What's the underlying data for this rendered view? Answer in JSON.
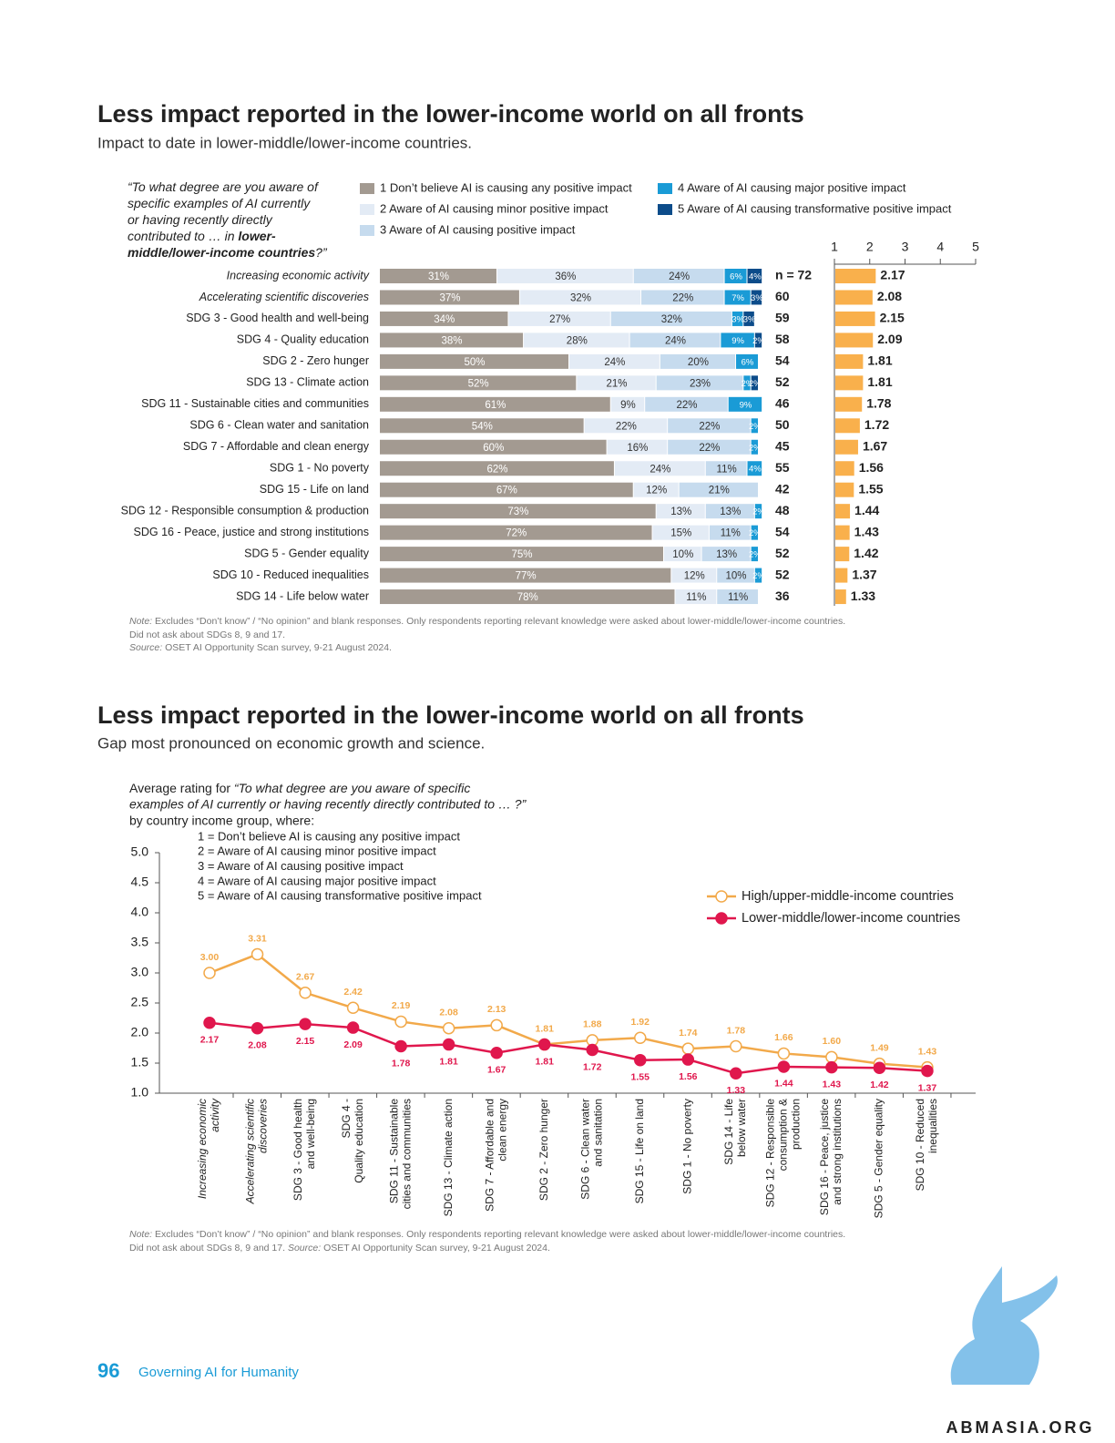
{
  "page": {
    "number": "96",
    "running_title": "Governing AI for Humanity",
    "watermark": "ABMASIA.ORG"
  },
  "chart_data": [
    {
      "type": "bar",
      "orientation": "horizontal",
      "stacked": true,
      "title": "Less impact reported in the lower-income world on all fronts",
      "subtitle": "Impact to date in lower-middle/lower-income countries.",
      "question": [
        [
          "“To what degree are you aware of"
        ],
        [
          "specific examples of AI currently"
        ],
        [
          "or having recently directly"
        ],
        [
          "contributed to … in ",
          "lower-"
        ],
        [
          "middle/lower-income countries",
          "?”"
        ]
      ],
      "categories": [
        "Increasing economic activity",
        "Accelerating scientific discoveries",
        "SDG 3 - Good health and well-being",
        "SDG 4 - Quality education",
        "SDG 2 - Zero hunger",
        "SDG 13 - Climate action",
        "SDG 11 - Sustainable cities and communities",
        "SDG 6 - Clean water and sanitation",
        "SDG 7 - Affordable and clean energy",
        "SDG 1 - No poverty",
        "SDG 15 - Life on land",
        "SDG 12 - Responsible consumption & production",
        "SDG 16 - Peace, justice and strong institutions",
        "SDG 5 - Gender equality",
        "SDG 10 - Reduced inequalities",
        "SDG 14 - Life below water"
      ],
      "series": [
        {
          "name": "1 Don’t believe AI is causing any positive impact",
          "color": "#a39a91",
          "values": [
            31,
            37,
            34,
            38,
            50,
            52,
            61,
            54,
            60,
            62,
            67,
            73,
            72,
            75,
            77,
            78
          ],
          "value_labels": [
            "31%",
            "37%",
            "34%",
            "38%",
            "50%",
            "52%",
            "61%",
            "54%",
            "60%",
            "62%",
            "67%",
            "73%",
            "72%",
            "75%",
            "77%",
            "78%"
          ]
        },
        {
          "name": "2 Aware of AI causing minor positive impact",
          "color": "#e3ebf5",
          "values": [
            36,
            32,
            27,
            28,
            24,
            21,
            9,
            22,
            16,
            24,
            12,
            13,
            15,
            10,
            12,
            11
          ],
          "value_labels": [
            "36%",
            "32%",
            "27%",
            "28%",
            "24%",
            "21%",
            "9%",
            "22%",
            "16%",
            "24%",
            "12%",
            "13%",
            "15%",
            "10%",
            "12%",
            "11%"
          ]
        },
        {
          "name": "3 Aware of AI causing positive impact",
          "color": "#c6dbee",
          "values": [
            24,
            22,
            32,
            24,
            20,
            23,
            22,
            22,
            22,
            11,
            21,
            13,
            11,
            13,
            10,
            11
          ],
          "value_labels": [
            "24%",
            "22%",
            "32%",
            "24%",
            "20%",
            "23%",
            "22%",
            "22%",
            "22%",
            "11%",
            "21%",
            "13%",
            "11%",
            "13%",
            "10%",
            "11%"
          ]
        },
        {
          "name": "4 Aware of AI causing major positive impact",
          "color": "#1a9bd6",
          "values": [
            6,
            7,
            3,
            9,
            6,
            2,
            9,
            2,
            2,
            4,
            null,
            2,
            2,
            2,
            2,
            null
          ],
          "value_labels": [
            "6%",
            "7%",
            "3%",
            "9%",
            "6%",
            "2%",
            "9%",
            "2%",
            "2%",
            "4%",
            null,
            "2%",
            "2%",
            "2%",
            "2%",
            null
          ]
        },
        {
          "name": "5 Aware of AI causing transformative positive impact",
          "color": "#0c4c8a",
          "values": [
            4,
            3,
            3,
            2,
            null,
            2,
            null,
            null,
            null,
            null,
            null,
            null,
            null,
            null,
            null,
            null
          ],
          "value_labels": [
            "4%",
            "3%",
            "3%",
            "2%",
            null,
            "2%",
            null,
            null,
            null,
            null,
            null,
            null,
            null,
            null,
            null,
            null
          ]
        }
      ],
      "sample_sizes": [
        "n = 72",
        "60",
        "59",
        "58",
        "54",
        "52",
        "46",
        "50",
        "45",
        "55",
        "42",
        "48",
        "54",
        "52",
        "52",
        "36"
      ],
      "mean": {
        "values": [
          2.17,
          2.08,
          2.15,
          2.09,
          1.81,
          1.81,
          1.78,
          1.72,
          1.67,
          1.56,
          1.55,
          1.44,
          1.43,
          1.42,
          1.37,
          1.33
        ],
        "color": "#f9b04c",
        "xlim": [
          1,
          5
        ],
        "xticks": [
          1,
          2,
          3,
          4,
          5
        ]
      },
      "note_label": "Note:",
      "note": "Excludes “Don’t know” / “No opinion” and blank responses. Only respondents reporting relevant knowledge were asked about lower-middle/lower-income countries.",
      "note_extra": "Did not ask about SDGs 8, 9 and 17.",
      "source_label": "Source:",
      "source": "OSET AI Opportunity Scan survey, 9-21 August 2024."
    },
    {
      "type": "line",
      "title": "Less impact reported in the lower-income world on all fronts",
      "subtitle": "Gap most pronounced on economic growth and science.",
      "intro": [
        [
          "Average rating for ",
          "“To what degree are you aware of specific"
        ],
        [
          "examples of AI currently or having recently directly contributed to … ?”"
        ],
        [
          "by country income group, where:"
        ]
      ],
      "scale": [
        "1 = Don’t believe AI is causing any positive impact",
        "2 = Aware of AI causing minor positive impact",
        "3 = Aware of AI causing positive impact",
        "4 = Aware of AI causing major positive impact",
        "5 = Aware of AI causing transformative positive impact"
      ],
      "categories": [
        [
          "Increasing economic",
          "activity"
        ],
        [
          "Accelerating scientific",
          "discoveries"
        ],
        [
          "SDG 3 - Good health",
          "and well-being"
        ],
        [
          "SDG 4 -",
          "Quality education"
        ],
        [
          "SDG 11 - Sustainable",
          "cities and communities"
        ],
        [
          "SDG 13 - Climate action"
        ],
        [
          "SDG 7 - Affordable and",
          "clean energy"
        ],
        [
          "SDG 2 - Zero hunger"
        ],
        [
          "SDG 6 - Clean water",
          "and sanitation"
        ],
        [
          "SDG 15 - Life on land"
        ],
        [
          "SDG 1 - No poverty"
        ],
        [
          "SDG 14 - Life",
          "below water"
        ],
        [
          "SDG 12 - Responsible",
          "consumption &",
          "production"
        ],
        [
          "SDG 16 - Peace, justice",
          "and strong institutions"
        ],
        [
          "SDG 5 - Gender equality"
        ],
        [
          "SDG 10 - Reduced",
          "inequalities"
        ]
      ],
      "series": [
        {
          "name": "High/upper-middle-income countries",
          "color": "#f2a94a",
          "marker": "open",
          "values": [
            3.0,
            3.31,
            2.67,
            2.42,
            2.19,
            2.08,
            2.13,
            1.81,
            1.88,
            1.92,
            1.74,
            1.78,
            1.66,
            1.6,
            1.49,
            1.43
          ],
          "value_labels": [
            "3.00",
            "3.31",
            "2.67",
            "2.42",
            "2.19",
            "2.08",
            "2.13",
            "1.81",
            "1.88",
            "1.92",
            "1.74",
            "1.78",
            "1.66",
            "1.60",
            "1.49",
            "1.43"
          ]
        },
        {
          "name": "Lower-middle/lower-income countries",
          "color": "#e0174d",
          "marker": "filled",
          "values": [
            2.17,
            2.08,
            2.15,
            2.09,
            1.78,
            1.81,
            1.67,
            1.81,
            1.72,
            1.55,
            1.56,
            1.33,
            1.44,
            1.43,
            1.42,
            1.37
          ],
          "value_labels": [
            "2.17",
            "2.08",
            "2.15",
            "2.09",
            "1.78",
            "1.81",
            "1.67",
            "1.81",
            "1.72",
            "1.55",
            "1.56",
            "1.33",
            "1.44",
            "1.43",
            "1.42",
            "1.37"
          ]
        }
      ],
      "ylim": [
        1,
        5
      ],
      "yticks": [
        {
          "value": 1,
          "label": "1.0"
        },
        {
          "value": 1.5,
          "label": "1.5"
        },
        {
          "value": 2,
          "label": "2.0"
        },
        {
          "value": 2.5,
          "label": "2.5"
        },
        {
          "value": 3,
          "label": "3.0"
        },
        {
          "value": 3.5,
          "label": "3.5"
        },
        {
          "value": 4,
          "label": "4.0"
        },
        {
          "value": 4.5,
          "label": "4.5"
        },
        {
          "value": 5,
          "label": "5.0"
        }
      ],
      "note_label": "Note:",
      "note": "Excludes “Don’t know” / “No opinion” and blank responses. Only respondents reporting relevant knowledge were asked about lower-middle/lower-income countries.",
      "note_extra": "Did not ask about SDGs 8, 9 and 17.",
      "source_label": "Source:",
      "source": "OSET AI Opportunity Scan survey, 9-21 August 2024."
    }
  ]
}
